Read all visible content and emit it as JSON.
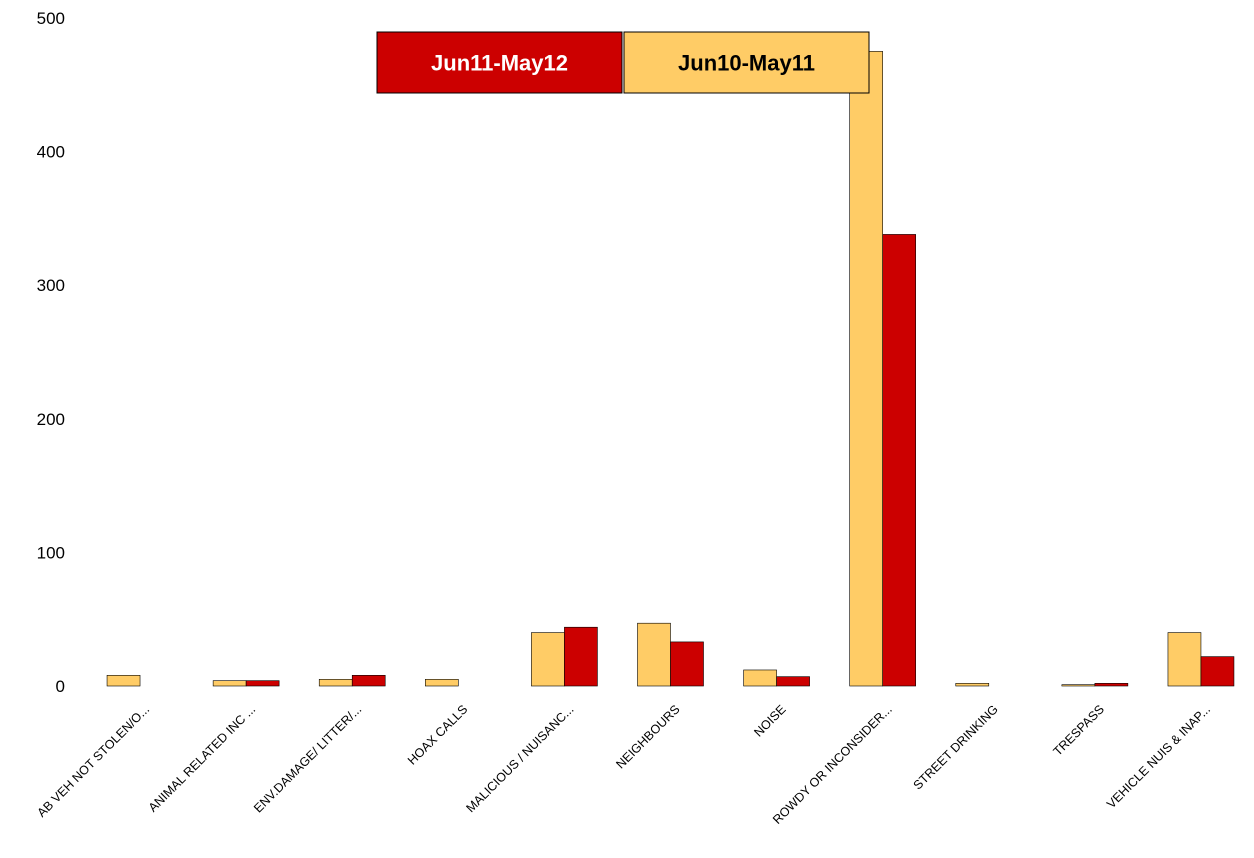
{
  "chart_data": {
    "type": "bar",
    "categories": [
      "AB VEH NOT STOLEN/O...",
      "ANIMAL RELATED INC ...",
      "ENV.DAMAGE/ LITTER/...",
      "HOAX CALLS",
      "MALICIOUS / NUISANC...",
      "NEIGHBOURS",
      "NOISE",
      "ROWDY OR INCONSIDER...",
      "STREET DRINKING",
      "TRESPASS",
      "VEHICLE NUIS & INAP..."
    ],
    "series": [
      {
        "name": "Jun10-May11",
        "color": "#FFCC66",
        "values": [
          8,
          4,
          5,
          5,
          40,
          47,
          12,
          475,
          2,
          1,
          40
        ]
      },
      {
        "name": "Jun11-May12",
        "color": "#CC0000",
        "values": [
          0,
          4,
          8,
          0,
          44,
          33,
          7,
          338,
          0,
          2,
          22
        ]
      }
    ],
    "ylim": [
      0,
      500
    ],
    "yticks": [
      "0",
      "100",
      "200",
      "300",
      "400",
      "500"
    ],
    "grid": false,
    "legend_position": "top-center"
  }
}
